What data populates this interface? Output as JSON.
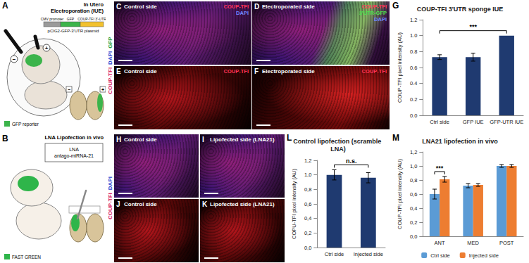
{
  "figure": {
    "A": {
      "letter": "A",
      "title": [
        "In Utero",
        "Electroporation (IUE)"
      ],
      "plasmid_parts": [
        "CMV promoter",
        "GFP",
        "COUP-TFI 3'-UTR"
      ],
      "plasmid": "pCIG2-GFP-3'UTR plasmid",
      "electrodes": [
        "−",
        "+"
      ],
      "key": "GFP reporter"
    },
    "B": {
      "letter": "B",
      "title": [
        "LNA Lipofection in vivo"
      ],
      "oligo": [
        "LNA",
        "antago-miRNA-21"
      ],
      "key": "FAST GREEN"
    },
    "side_labels": [
      [
        {
          "text": "COUP-TFI",
          "color": "#d81b60"
        },
        {
          "text": "DAPI",
          "color": "#2a3fd0"
        },
        {
          "text": "GFP",
          "color": "#2e9e3a"
        }
      ],
      [
        {
          "text": "COUP-TFI",
          "color": "#d81b60"
        },
        {
          "text": "DAPI",
          "color": "#2a3fd0"
        }
      ]
    ],
    "images": [
      {
        "letter": "C",
        "title": "Control side",
        "channels": [
          {
            "text": "COUP-TFI",
            "color": "#ff3355"
          },
          {
            "text": "DAPI",
            "color": "#6f86ff"
          }
        ]
      },
      {
        "letter": "D",
        "title": "Electroporated side",
        "channels": [
          {
            "text": "COUP-TFI",
            "color": "#ff3355"
          },
          {
            "text": "3'UTR-GFP",
            "color": "#4ee04e"
          },
          {
            "text": "DAPI",
            "color": "#6f86ff"
          }
        ]
      },
      {
        "letter": "E",
        "title": "Control side",
        "channels": [
          {
            "text": "COUP-TFI",
            "color": "#ff3355"
          }
        ]
      },
      {
        "letter": "F",
        "title": "Electroporated side",
        "channels": [
          {
            "text": "COUP-TFI",
            "color": "#ff3355"
          }
        ]
      },
      {
        "letter": "H",
        "title": "Control side",
        "channels": []
      },
      {
        "letter": "I",
        "title": "Lipofected side (LNA21)",
        "channels": []
      },
      {
        "letter": "J",
        "title": "Control side",
        "channels": []
      },
      {
        "letter": "K",
        "title": "Lipofected side (LNA21)",
        "channels": []
      }
    ]
  },
  "chart_data": [
    {
      "letter": "G",
      "type": "bar",
      "title": "COUP-TFI 3'UTR sponge IUE",
      "y_label": "COUP-TFI pixel intensity (AU)",
      "categories": [
        "Ctrl side",
        "GFP IUE",
        "GFP-UTR IUE"
      ],
      "values": [
        0.73,
        0.73,
        1.0
      ],
      "errors": [
        0.03,
        0.05,
        0.0
      ],
      "color": "#1f3a70",
      "ylim": [
        0,
        1.2
      ],
      "yticks": [
        {
          "value": 0,
          "label": "0.0"
        },
        0.2,
        0.4,
        0.6,
        0.8,
        {
          "value": 1,
          "label": "1.0"
        },
        1.2
      ],
      "grid": false,
      "annotations": [
        {
          "text": "***",
          "between": [
            "Ctrl side",
            "GFP-UTR IUE"
          ]
        }
      ]
    },
    {
      "letter": "L",
      "type": "bar",
      "title": "Control lipofection (scramble LNA)",
      "y_label": "COPU-TFI pixel intensity (AU)",
      "categories": [
        "Ctrl side",
        "Injected side"
      ],
      "values": [
        1.0,
        0.96
      ],
      "errors": [
        0.07,
        0.07
      ],
      "color": "#1f3a70",
      "ylim": [
        0,
        1.2
      ],
      "yticks": [
        {
          "value": 0,
          "label": "0,0"
        },
        {
          "value": 0.2,
          "label": "0,2"
        },
        {
          "value": 0.4,
          "label": "0,4"
        },
        {
          "value": 0.6,
          "label": "0,6"
        },
        {
          "value": 0.8,
          "label": "0,8"
        },
        {
          "value": 1,
          "label": "1,0"
        },
        {
          "value": 1.2,
          "label": "1,2"
        }
      ],
      "grid": false,
      "annotations": [
        {
          "text": "n.s.",
          "between": [
            "Ctrl side",
            "Injected side"
          ]
        }
      ]
    },
    {
      "letter": "M",
      "type": "bar",
      "title": "LNA21 lipofection in vivo",
      "y_label": "COUP-TFI pixel intensity (AU)",
      "categories": [
        "ANT",
        "MED",
        "POST"
      ],
      "series": [
        {
          "name": "Ctrl side",
          "color": "#5b9bd5",
          "values": [
            0.6,
            0.72,
            1.0
          ],
          "errors": [
            0.07,
            0.03,
            0.02
          ]
        },
        {
          "name": "Injected side",
          "color": "#ed7d31",
          "values": [
            0.81,
            0.73,
            1.0
          ],
          "errors": [
            0.04,
            0.02,
            0.02
          ]
        }
      ],
      "ylim": [
        0,
        1.2
      ],
      "yticks": [
        {
          "value": 0,
          "label": "0,0"
        },
        {
          "value": 0.2,
          "label": "0,2"
        },
        {
          "value": 0.4,
          "label": "0,4"
        },
        {
          "value": 0.6,
          "label": "0,6"
        },
        {
          "value": 0.8,
          "label": "0,8"
        },
        {
          "value": 1,
          "label": "1,0"
        },
        {
          "value": 1.2,
          "label": "1,2"
        }
      ],
      "grid": false,
      "legend": "bottom",
      "annotations": [
        {
          "text": "***",
          "category": "ANT"
        }
      ]
    }
  ]
}
